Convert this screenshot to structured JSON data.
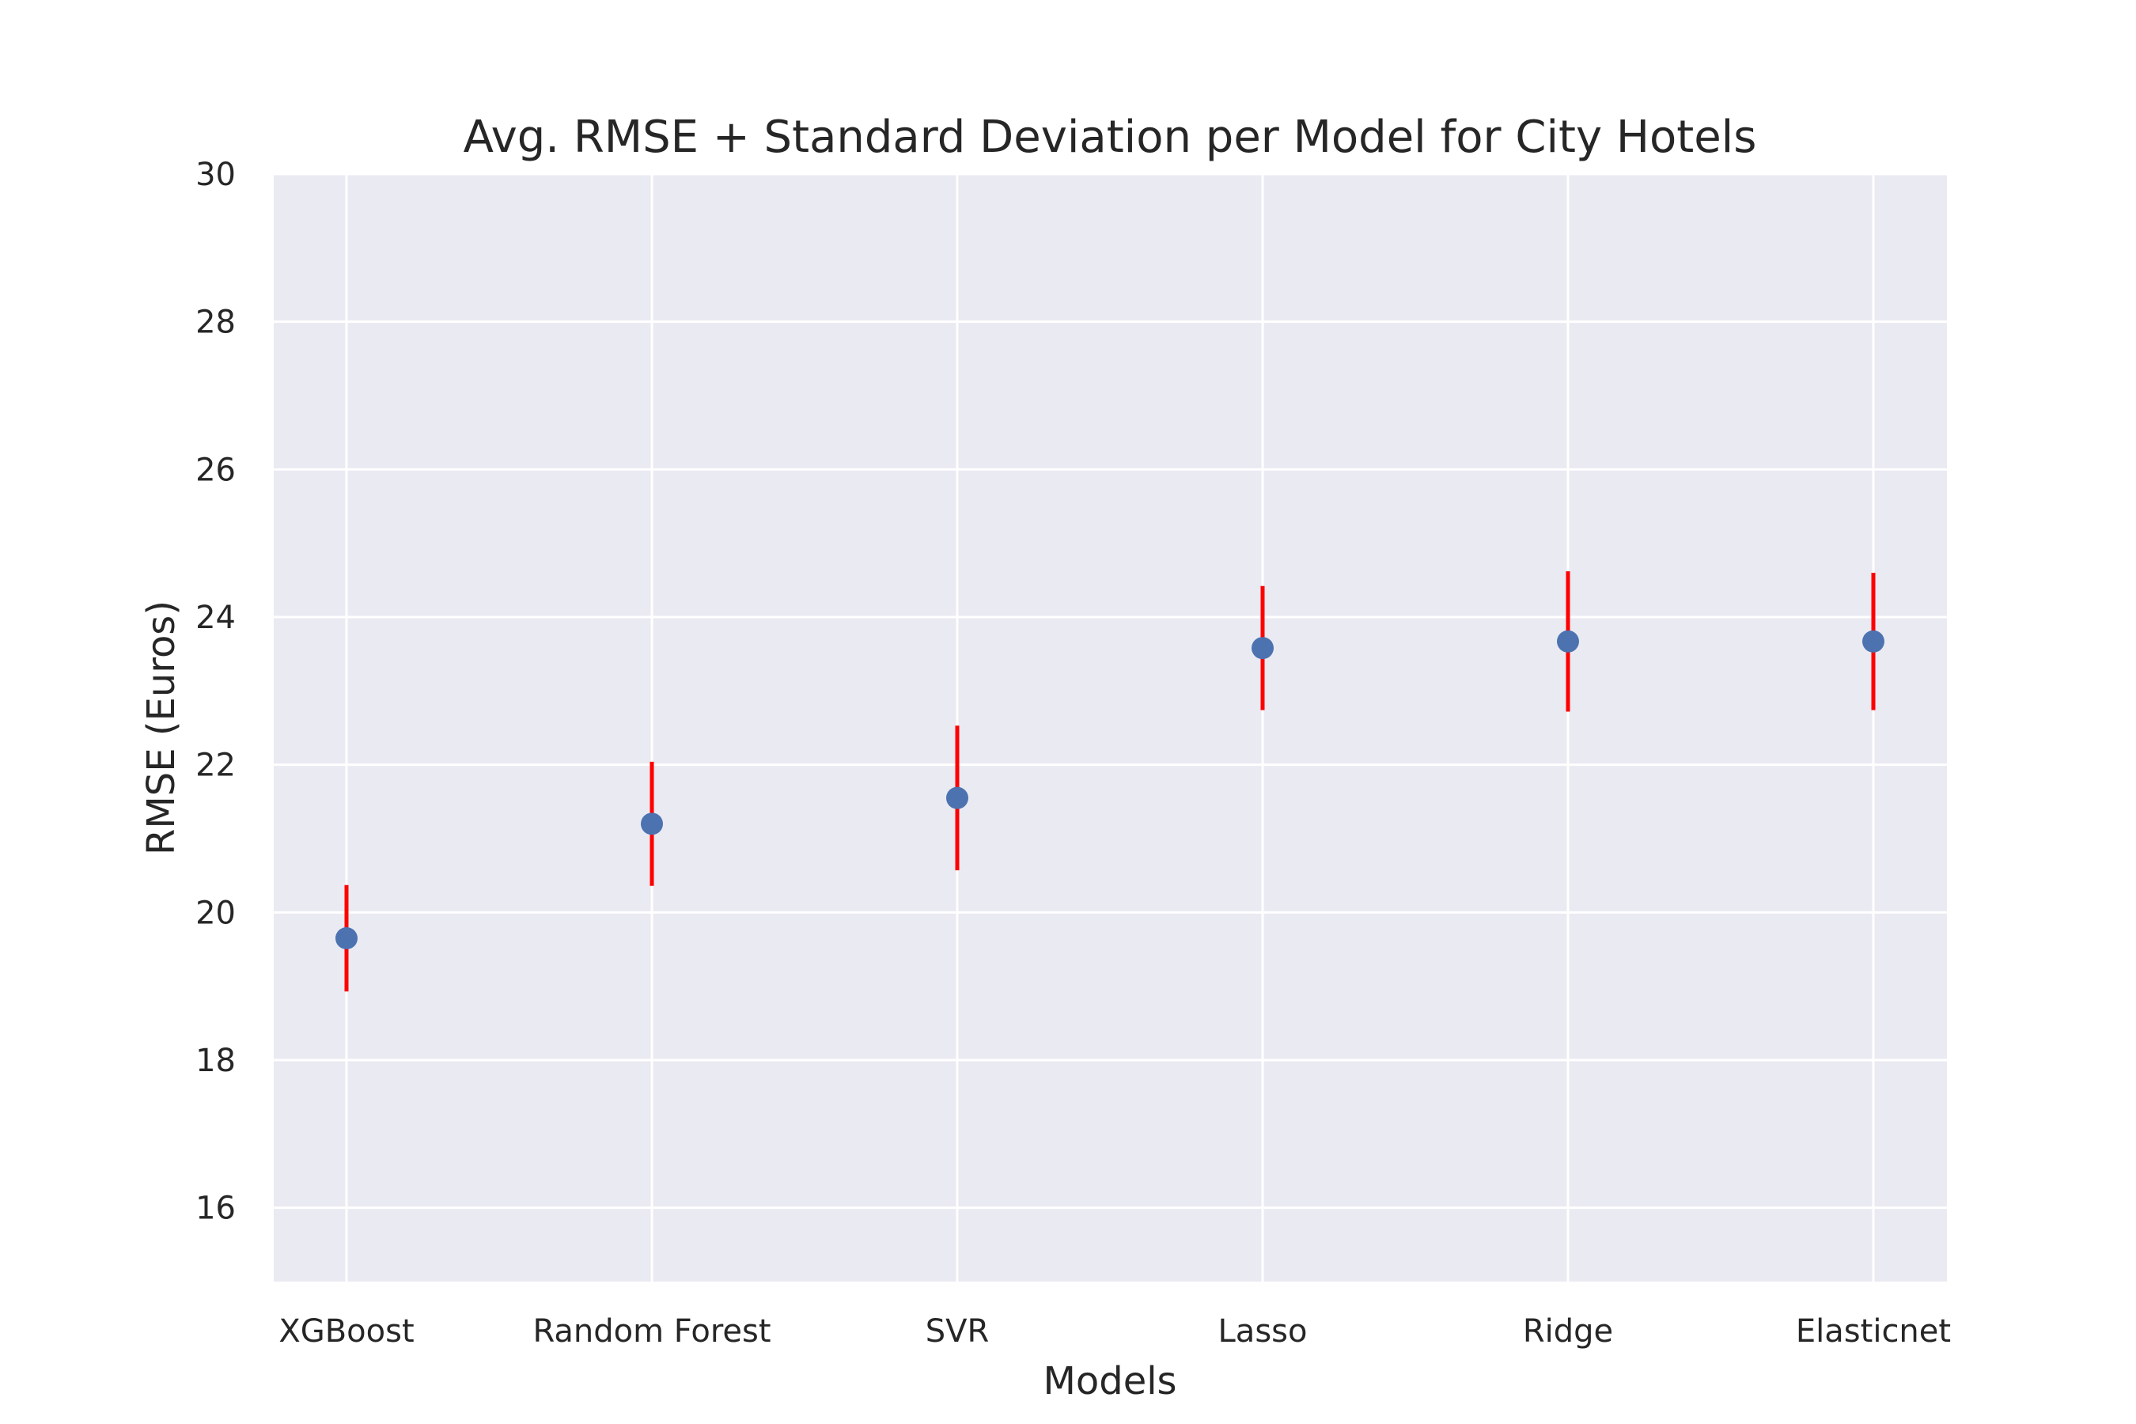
{
  "chart_data": {
    "type": "scatter",
    "title": "Avg. RMSE + Standard Deviation per Model for City Hotels",
    "xlabel": "Models",
    "ylabel": "RMSE (Euros)",
    "categories": [
      "XGBoost",
      "Random Forest",
      "SVR",
      "Lasso",
      "Ridge",
      "Elasticnet"
    ],
    "series": [
      {
        "values": [
          19.65,
          21.2,
          21.55,
          23.58,
          23.67,
          23.67
        ],
        "error": [
          0.72,
          0.84,
          0.98,
          0.84,
          0.95,
          0.93
        ],
        "color": "#4c72b0",
        "error_color": "#ff0000"
      }
    ],
    "ylim": [
      15,
      30
    ],
    "yticks": [
      16,
      18,
      20,
      22,
      24,
      26,
      28,
      30
    ],
    "grid": true,
    "background": "#eaeaf2",
    "legend": "none"
  }
}
